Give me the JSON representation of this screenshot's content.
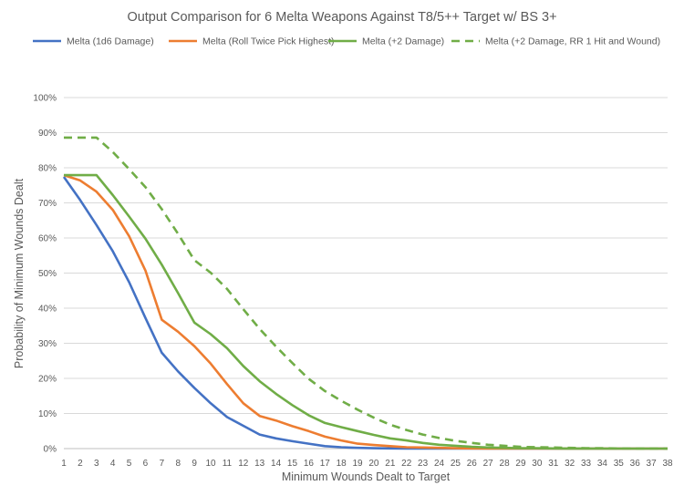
{
  "chart_data": {
    "type": "line",
    "title": "Output Comparison for 6 Melta Weapons Against T8/5++ Target w/ BS 3+",
    "xlabel": "Minimum Wounds Dealt to Target",
    "ylabel": "Probability of Minimum Wounds Dealt",
    "ylim": [
      0,
      100
    ],
    "y_ticks": [
      "0%",
      "10%",
      "20%",
      "30%",
      "40%",
      "50%",
      "60%",
      "70%",
      "80%",
      "90%",
      "100%"
    ],
    "y_tick_values": [
      0,
      10,
      20,
      30,
      40,
      50,
      60,
      70,
      80,
      90,
      100
    ],
    "x": [
      1,
      2,
      3,
      4,
      5,
      6,
      7,
      8,
      9,
      10,
      11,
      12,
      13,
      14,
      15,
      16,
      17,
      18,
      19,
      20,
      21,
      22,
      23,
      24,
      25,
      26,
      27,
      28,
      29,
      30,
      31,
      32,
      33,
      34,
      35,
      36,
      37,
      38
    ],
    "gridlines": true,
    "legend_position": "top",
    "series": [
      {
        "name": "Melta (1d6 Damage)",
        "color": "#4472C4",
        "dash": "solid",
        "values": [
          77.4,
          70.8,
          63.7,
          56.2,
          47.4,
          37.2,
          27.3,
          22.0,
          17.3,
          12.9,
          9.0,
          6.5,
          4.0,
          2.9,
          2.1,
          1.4,
          0.7,
          0.4,
          0.2,
          0.1,
          0.05,
          0.03,
          0.02,
          0.01,
          0,
          0,
          0,
          0,
          0,
          0,
          0,
          0,
          0,
          0,
          0,
          0,
          0,
          0
        ]
      },
      {
        "name": "Melta (Roll Twice Pick Highest)",
        "color": "#ED7D31",
        "dash": "solid",
        "values": [
          77.9,
          76.4,
          73.2,
          68.0,
          60.5,
          50.7,
          36.7,
          33.3,
          29.2,
          24.2,
          18.4,
          12.9,
          9.3,
          8.0,
          6.4,
          5.0,
          3.4,
          2.3,
          1.4,
          1.0,
          0.7,
          0.4,
          0.3,
          0.2,
          0.1,
          0.05,
          0.03,
          0.02,
          0,
          0,
          0,
          0,
          0,
          0,
          0,
          0,
          0,
          0
        ]
      },
      {
        "name": "Melta (+2 Damage)",
        "color": "#70AD47",
        "dash": "solid",
        "values": [
          77.9,
          77.9,
          77.9,
          72.2,
          66.1,
          59.8,
          52.4,
          44.3,
          35.9,
          32.6,
          28.6,
          23.5,
          19.2,
          15.6,
          12.4,
          9.5,
          7.3,
          6.1,
          5.0,
          3.9,
          2.9,
          2.3,
          1.6,
          1.1,
          0.8,
          0.5,
          0.3,
          0.2,
          0.1,
          0.1,
          0.05,
          0.03,
          0.02,
          0.01,
          0,
          0,
          0,
          0
        ]
      },
      {
        "name": "Melta (+2 Damage, RR 1 Hit and Wound)",
        "color": "#70AD47",
        "dash": "dashed",
        "values": [
          88.6,
          88.6,
          88.6,
          84.5,
          79.6,
          74.5,
          68.2,
          61.2,
          53.7,
          50.1,
          45.5,
          39.7,
          34.1,
          29.1,
          24.4,
          19.9,
          16.4,
          13.6,
          11.1,
          8.8,
          6.8,
          5.3,
          4.0,
          3.0,
          2.2,
          1.6,
          1.1,
          0.8,
          0.5,
          0.4,
          0.3,
          0.2,
          0.1,
          0.1,
          0.05,
          0.03,
          0.02,
          0.01
        ]
      }
    ]
  }
}
